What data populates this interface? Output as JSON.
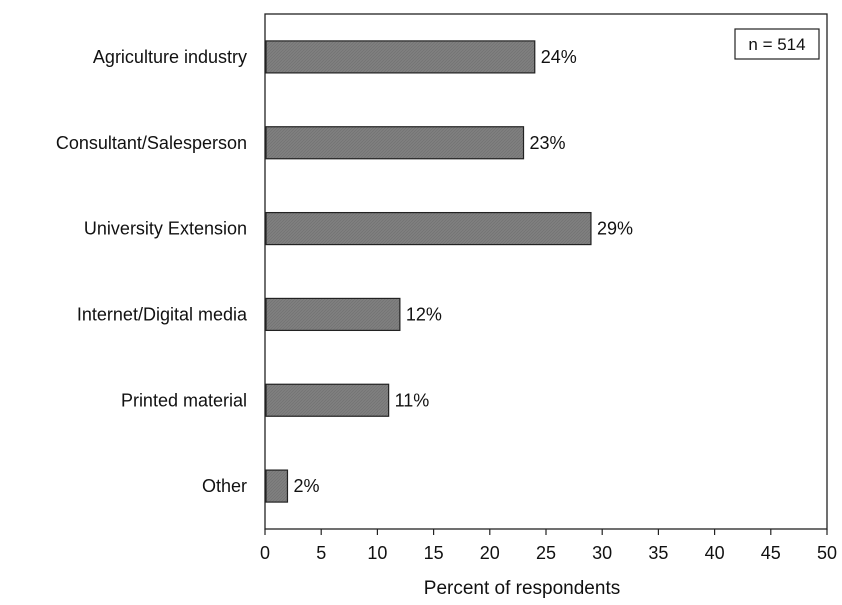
{
  "chart_data": {
    "type": "bar",
    "orientation": "horizontal",
    "categories": [
      "Agriculture industry",
      "Consultant/Salesperson",
      "University Extension",
      "Internet/Digital media",
      "Printed material",
      "Other"
    ],
    "values": [
      24,
      23,
      29,
      12,
      11,
      2
    ],
    "data_labels": [
      "24%",
      "23%",
      "29%",
      "12%",
      "11%",
      "2%"
    ],
    "title": "",
    "xlabel": "Percent of respondents",
    "ylabel": "",
    "xlim": [
      0,
      50
    ],
    "xticks": [
      0,
      5,
      10,
      15,
      20,
      25,
      30,
      35,
      40,
      45,
      50
    ],
    "grid": false,
    "annotation": "n = 514",
    "annotation_position": "top-right",
    "bar_color": "#7f7f7f",
    "bar_edge_color": "#222222"
  }
}
